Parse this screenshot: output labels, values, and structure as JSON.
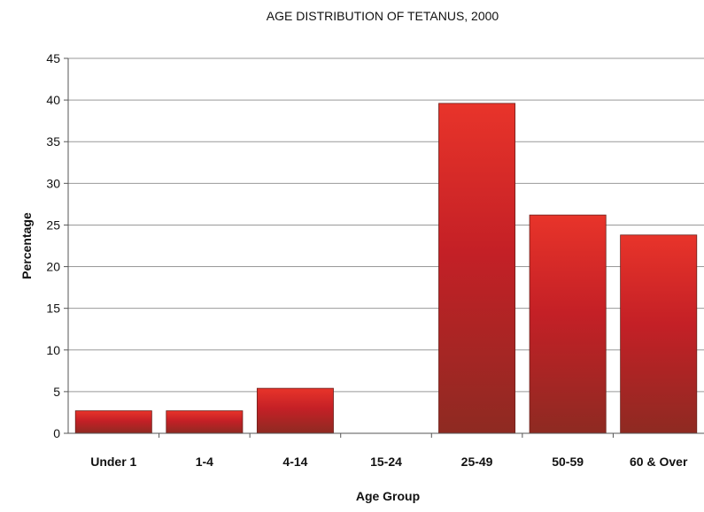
{
  "chart_data": {
    "type": "bar",
    "title": "AGE DISTRIBUTION OF TETANUS, 2000",
    "xlabel": "Age Group",
    "ylabel": "Percentage",
    "categories": [
      "Under 1",
      "1-4",
      "4-14",
      "15-24",
      "25-49",
      "50-59",
      "60 & Over"
    ],
    "values": [
      2.7,
      2.7,
      5.4,
      0,
      39.6,
      26.2,
      23.8
    ],
    "ylim": [
      0,
      45
    ],
    "yticks": [
      0,
      5,
      10,
      15,
      20,
      25,
      30,
      35,
      40,
      45
    ],
    "grid": true,
    "bar_color": "#d42a24"
  }
}
